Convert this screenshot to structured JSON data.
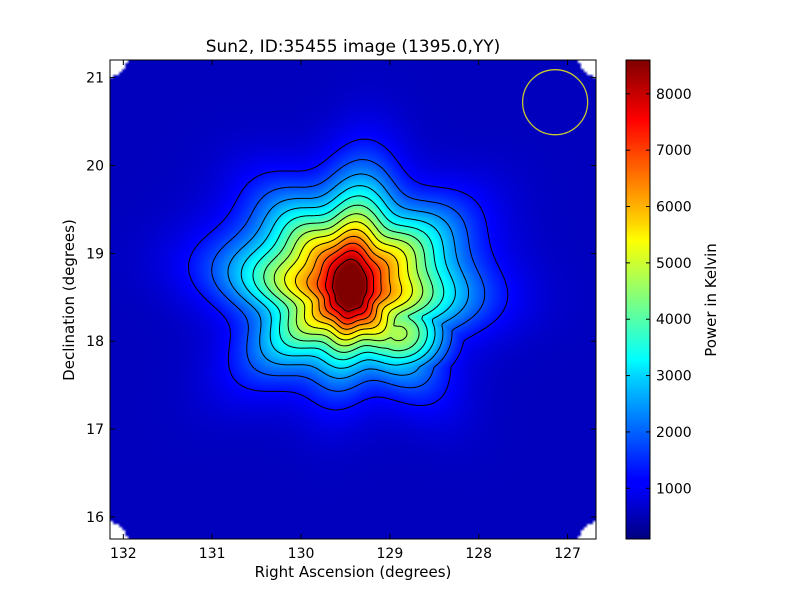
{
  "chart_data": {
    "type": "heatmap",
    "title": "Sun2, ID:35455 image (1395.0,YY)",
    "xlabel": "Right Ascension (degrees)",
    "ylabel": "Declination (degrees)",
    "colorbar_label": "Power in Kelvin",
    "xlim": [
      132.15,
      126.68
    ],
    "ylim": [
      15.75,
      21.2
    ],
    "x_ticks": [
      132,
      131,
      130,
      129,
      128,
      127
    ],
    "y_ticks": [
      16,
      17,
      18,
      19,
      20,
      21
    ],
    "colorbar_range": [
      100,
      8600
    ],
    "colorbar_ticks": [
      1000,
      2000,
      3000,
      4000,
      5000,
      6000,
      7000,
      8000
    ],
    "colormap": "jet",
    "peak": {
      "ra": 129.45,
      "dec": 18.58,
      "value": 8600
    },
    "contour_levels_fraction": [
      0.08,
      0.15,
      0.22,
      0.29,
      0.36,
      0.43,
      0.5,
      0.57,
      0.64,
      0.71,
      0.78,
      0.86,
      0.95
    ],
    "beam_circle": {
      "ra": 127.14,
      "dec": 20.72,
      "radius_deg": 0.37,
      "color": "#c8c832"
    },
    "grid": false
  }
}
